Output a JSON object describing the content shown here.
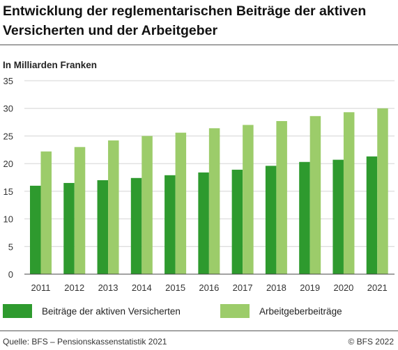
{
  "chart_data": {
    "type": "bar",
    "title": "Entwicklung der reglementarischen Beiträge der aktiven Versicherten und der Arbeitgeber",
    "ylabel": "In Milliarden Franken",
    "xlabel": "",
    "ylim": [
      0,
      35
    ],
    "yticks": [
      0,
      5,
      10,
      15,
      20,
      25,
      30,
      35
    ],
    "grid": true,
    "legend_position": "bottom",
    "categories": [
      "2011",
      "2012",
      "2013",
      "2014",
      "2015",
      "2016",
      "2017",
      "2018",
      "2019",
      "2020",
      "2021"
    ],
    "series": [
      {
        "name": "Beiträge der aktiven Versicherten",
        "color": "#2e9a2e",
        "values": [
          16.0,
          16.5,
          17.0,
          17.4,
          17.9,
          18.4,
          18.9,
          19.6,
          20.3,
          20.7,
          21.3
        ]
      },
      {
        "name": "Arbeitgeberbeiträge",
        "color": "#9ccc6a",
        "values": [
          22.2,
          23.0,
          24.2,
          25.0,
          25.6,
          26.4,
          27.0,
          27.7,
          28.6,
          29.3,
          30.0
        ]
      }
    ]
  },
  "footer": {
    "source": "Quelle: BFS – Pensionskassenstatistik 2021",
    "copyright": "© BFS 2022"
  }
}
